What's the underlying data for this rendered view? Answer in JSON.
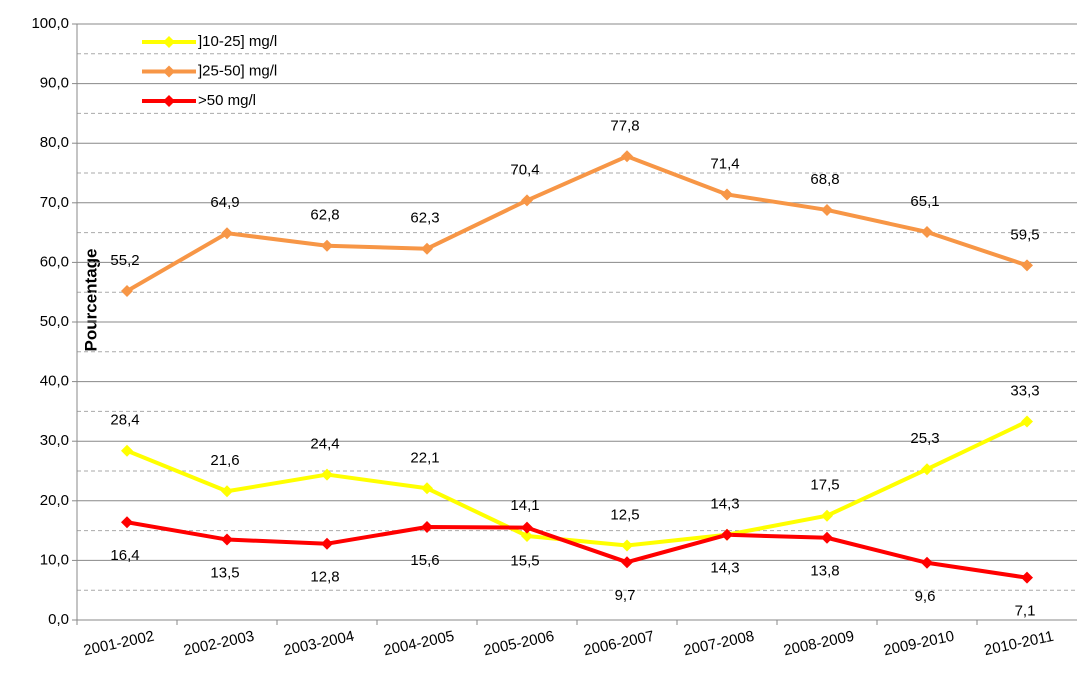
{
  "chart_data": {
    "type": "line",
    "ylabel": "Pourcentage",
    "categories": [
      "2001-2002",
      "2002-2003",
      "2003-2004",
      "2004-2005",
      "2005-2006",
      "2006-2007",
      "2007-2008",
      "2008-2009",
      "2009-2010",
      "2010-2011"
    ],
    "series": [
      {
        "name": "]10-25] mg/l",
        "color": "#ffff00",
        "values": [
          28.4,
          21.6,
          24.4,
          22.1,
          14.1,
          12.5,
          14.3,
          17.5,
          25.3,
          33.3
        ],
        "value_labels": [
          "28,4",
          "21,6",
          "24,4",
          "22,1",
          "14,1",
          "12,5",
          "14,3",
          "17,5",
          "25,3",
          "33,3"
        ],
        "label_position": "above"
      },
      {
        "name": "]25-50] mg/l",
        "color": "#f79646",
        "values": [
          55.2,
          64.9,
          62.8,
          62.3,
          70.4,
          77.8,
          71.4,
          68.8,
          65.1,
          59.5
        ],
        "value_labels": [
          "55,2",
          "64,9",
          "62,8",
          "62,3",
          "70,4",
          "77,8",
          "71,4",
          "68,8",
          "65,1",
          "59,5"
        ],
        "label_position": "above"
      },
      {
        "name": ">50 mg/l",
        "color": "#ff0000",
        "values": [
          16.4,
          13.5,
          12.8,
          15.6,
          15.5,
          9.7,
          14.3,
          13.8,
          9.6,
          7.1
        ],
        "value_labels": [
          "16,4",
          "13,5",
          "12,8",
          "15,6",
          "15,5",
          "9,7",
          "14,3",
          "13,8",
          "9,6",
          "7,1"
        ],
        "label_position": "below"
      }
    ],
    "ylim": [
      0,
      100
    ],
    "yticks": [
      {
        "value": 0,
        "label": "0,0"
      },
      {
        "value": 10,
        "label": "10,0"
      },
      {
        "value": 20,
        "label": "20,0"
      },
      {
        "value": 30,
        "label": "30,0"
      },
      {
        "value": 40,
        "label": "40,0"
      },
      {
        "value": 50,
        "label": "50,0"
      },
      {
        "value": 60,
        "label": "60,0"
      },
      {
        "value": 70,
        "label": "70,0"
      },
      {
        "value": 80,
        "label": "80,0"
      },
      {
        "value": 90,
        "label": "90,0"
      },
      {
        "value": 100,
        "label": "100,0"
      }
    ],
    "minor_yticks": [
      5,
      15,
      25,
      35,
      45,
      55,
      65,
      75,
      85,
      95
    ],
    "grid": true,
    "legend": "top-left"
  }
}
